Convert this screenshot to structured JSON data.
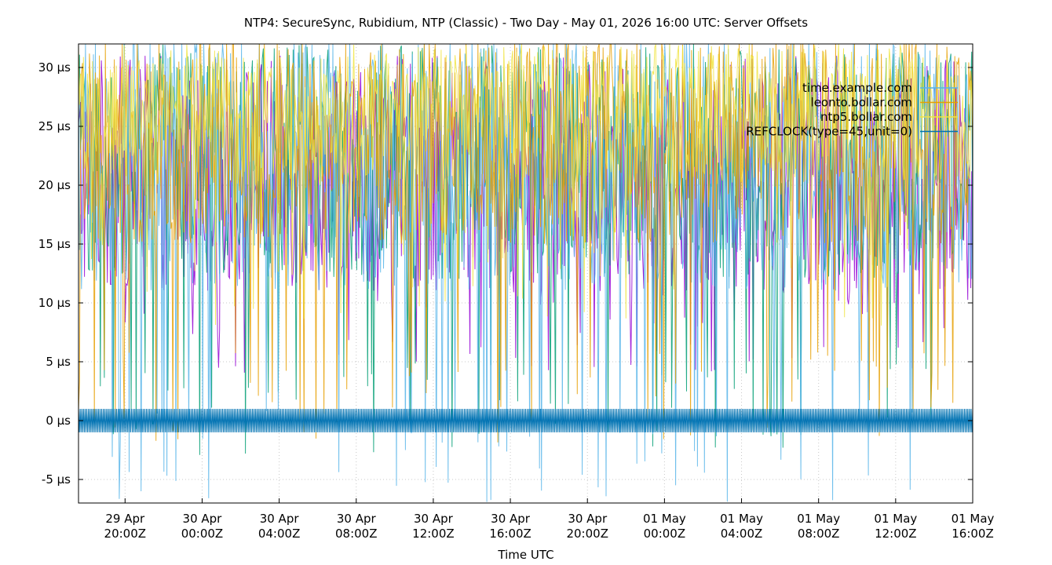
{
  "chart_data": {
    "type": "line",
    "title": "NTP4: SecureSync, Rubidium, NTP (Classic) - Two Day - May 01, 2026 16:00 UTC: Server Offsets",
    "xlabel": "Time UTC",
    "ylabel": "",
    "x_range": [
      "2026-04-29T17:35:00Z",
      "2026-05-01T16:00:00Z"
    ],
    "ylim": [
      -7,
      32
    ],
    "y_unit": "µs",
    "y_ticks": [
      {
        "value": -5,
        "label": "-5 µs"
      },
      {
        "value": 0,
        "label": "0 µs"
      },
      {
        "value": 5,
        "label": "5 µs"
      },
      {
        "value": 10,
        "label": "10 µs"
      },
      {
        "value": 15,
        "label": "15 µs"
      },
      {
        "value": 20,
        "label": "20 µs"
      },
      {
        "value": 25,
        "label": "25 µs"
      },
      {
        "value": 30,
        "label": "30 µs"
      }
    ],
    "x_ticks": [
      {
        "time": "2026-04-29T20:00:00Z",
        "label1": "29 Apr",
        "label2": "20:00Z"
      },
      {
        "time": "2026-04-30T00:00:00Z",
        "label1": "30 Apr",
        "label2": "00:00Z"
      },
      {
        "time": "2026-04-30T04:00:00Z",
        "label1": "30 Apr",
        "label2": "04:00Z"
      },
      {
        "time": "2026-04-30T08:00:00Z",
        "label1": "30 Apr",
        "label2": "08:00Z"
      },
      {
        "time": "2026-04-30T12:00:00Z",
        "label1": "30 Apr",
        "label2": "12:00Z"
      },
      {
        "time": "2026-04-30T16:00:00Z",
        "label1": "30 Apr",
        "label2": "16:00Z"
      },
      {
        "time": "2026-04-30T20:00:00Z",
        "label1": "30 Apr",
        "label2": "20:00Z"
      },
      {
        "time": "2026-05-01T00:00:00Z",
        "label1": "01 May",
        "label2": "00:00Z"
      },
      {
        "time": "2026-05-01T04:00:00Z",
        "label1": "01 May",
        "label2": "04:00Z"
      },
      {
        "time": "2026-05-01T08:00:00Z",
        "label1": "01 May",
        "label2": "08:00Z"
      },
      {
        "time": "2026-05-01T12:00:00Z",
        "label1": "01 May",
        "label2": "12:00Z"
      },
      {
        "time": "2026-05-01T16:00:00Z",
        "label1": "01 May",
        "label2": "16:00Z"
      }
    ],
    "grid": true,
    "legend_position": "top-right",
    "series": [
      {
        "name": "",
        "color": "#9400d3",
        "pattern": "noise",
        "base": 21,
        "spread": 10,
        "dip_min": 4
      },
      {
        "name": "",
        "color": "#009e73",
        "pattern": "noise",
        "base": 22,
        "spread": 10,
        "dip_min": -3
      },
      {
        "name": "time.example.com",
        "color": "#56b4e9",
        "pattern": "noise",
        "base": 22,
        "spread": 11,
        "dip_min": -7
      },
      {
        "name": "leonto.bollar.com",
        "color": "#e69f00",
        "pattern": "noise",
        "base": 24,
        "spread": 9,
        "dip_min": -2
      },
      {
        "name": "ntp5.bollar.com",
        "color": "#f0e442",
        "pattern": "noise",
        "base": 26,
        "spread": 6,
        "dip_min": 8
      },
      {
        "name": "REFCLOCK(type=45,unit=0)",
        "color": "#0072b2",
        "pattern": "square",
        "high": 1,
        "low": -1
      }
    ]
  }
}
